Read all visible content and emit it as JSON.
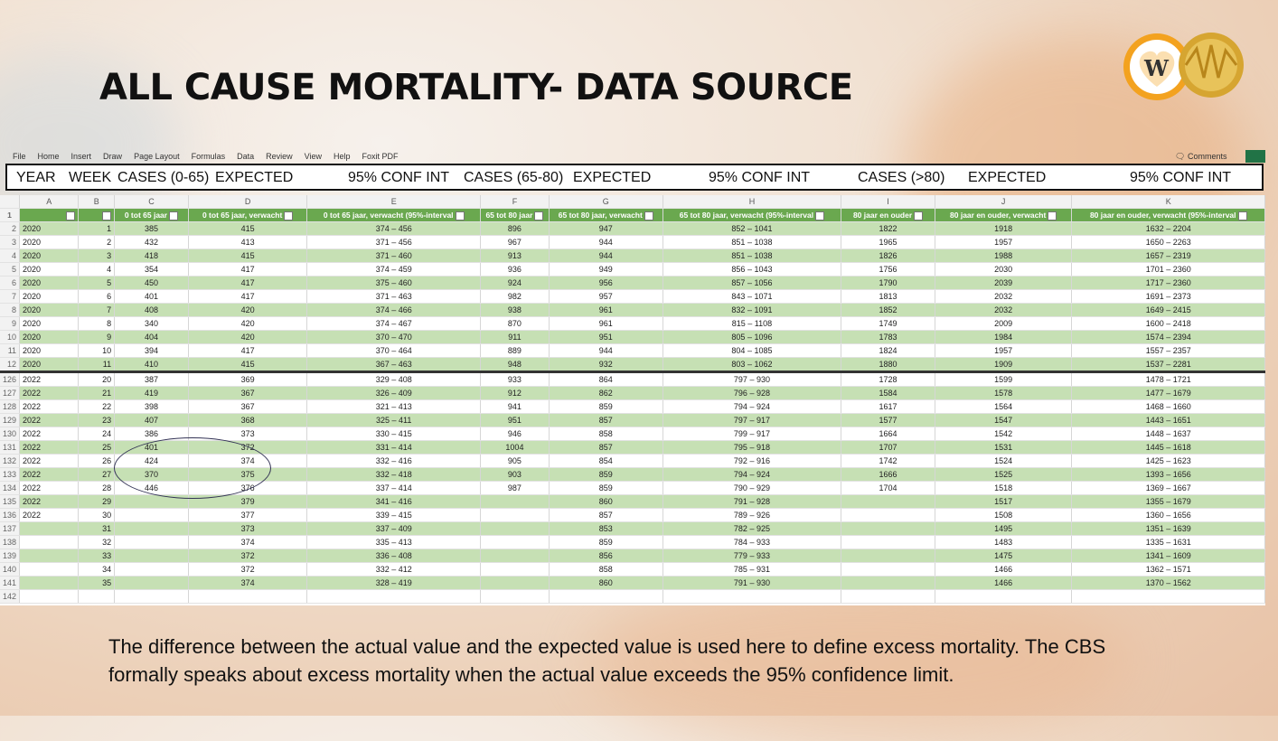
{
  "slide": {
    "title": "ALL CAUSE MORTALITY- DATA SOURCE",
    "caption_line1": "The difference between the actual value and the expected value is used here to define excess mortality. The CBS",
    "caption_line2": "formally speaks about excess mortality when the actual value exceeds the 95% confidence limit.",
    "logo_text": "W"
  },
  "ribbon": {
    "tabs": [
      "File",
      "Home",
      "Insert",
      "Draw",
      "Page Layout",
      "Formulas",
      "Data",
      "Review",
      "View",
      "Help",
      "Foxit PDF"
    ],
    "comments": "Comments"
  },
  "header_labels": [
    "YEAR",
    "WEEK",
    "CASES (0-65)",
    "EXPECTED",
    "95% CONF INT",
    "CASES (65-80)",
    "EXPECTED",
    "95% CONF INT",
    "CASES (>80)",
    "EXPECTED",
    "95% CONF INT"
  ],
  "column_letters": [
    "A",
    "B",
    "C",
    "D",
    "E",
    "F",
    "G",
    "H",
    "I",
    "J",
    "K"
  ],
  "column_headers": [
    "",
    "",
    "0 tot 65 jaar",
    "0 tot 65 jaar, verwacht",
    "0 tot 65 jaar, verwacht (95%-interval",
    "65 tot 80 jaar",
    "65 tot 80 jaar, verwacht",
    "65 tot 80 jaar, verwacht (95%-interval",
    "80 jaar en ouder",
    "80 jaar en ouder, verwacht",
    "80 jaar en ouder, verwacht (95%-interval"
  ],
  "rows": [
    [
      "2",
      "2020",
      "1",
      "385",
      "415",
      "374 – 456",
      "896",
      "947",
      "852 – 1041",
      "1822",
      "1918",
      "1632 – 2204"
    ],
    [
      "3",
      "2020",
      "2",
      "432",
      "413",
      "371 – 456",
      "967",
      "944",
      "851 – 1038",
      "1965",
      "1957",
      "1650 – 2263"
    ],
    [
      "4",
      "2020",
      "3",
      "418",
      "415",
      "371 – 460",
      "913",
      "944",
      "851 – 1038",
      "1826",
      "1988",
      "1657 – 2319"
    ],
    [
      "5",
      "2020",
      "4",
      "354",
      "417",
      "374 – 459",
      "936",
      "949",
      "856 – 1043",
      "1756",
      "2030",
      "1701 – 2360"
    ],
    [
      "6",
      "2020",
      "5",
      "450",
      "417",
      "375 – 460",
      "924",
      "956",
      "857 – 1056",
      "1790",
      "2039",
      "1717 – 2360"
    ],
    [
      "7",
      "2020",
      "6",
      "401",
      "417",
      "371 – 463",
      "982",
      "957",
      "843 – 1071",
      "1813",
      "2032",
      "1691 – 2373"
    ],
    [
      "8",
      "2020",
      "7",
      "408",
      "420",
      "374 – 466",
      "938",
      "961",
      "832 – 1091",
      "1852",
      "2032",
      "1649 – 2415"
    ],
    [
      "9",
      "2020",
      "8",
      "340",
      "420",
      "374 – 467",
      "870",
      "961",
      "815 – 1108",
      "1749",
      "2009",
      "1600 – 2418"
    ],
    [
      "10",
      "2020",
      "9",
      "404",
      "420",
      "370 – 470",
      "911",
      "951",
      "805 – 1096",
      "1783",
      "1984",
      "1574 – 2394"
    ],
    [
      "11",
      "2020",
      "10",
      "394",
      "417",
      "370 – 464",
      "889",
      "944",
      "804 – 1085",
      "1824",
      "1957",
      "1557 – 2357"
    ],
    [
      "12",
      "2020",
      "11",
      "410",
      "415",
      "367 – 463",
      "948",
      "932",
      "803 – 1062",
      "1880",
      "1909",
      "1537 – 2281"
    ],
    [
      "126",
      "2022",
      "20",
      "387",
      "369",
      "329 – 408",
      "933",
      "864",
      "797 – 930",
      "1728",
      "1599",
      "1478 – 1721"
    ],
    [
      "127",
      "2022",
      "21",
      "419",
      "367",
      "326 – 409",
      "912",
      "862",
      "796 – 928",
      "1584",
      "1578",
      "1477 – 1679"
    ],
    [
      "128",
      "2022",
      "22",
      "398",
      "367",
      "321 – 413",
      "941",
      "859",
      "794 – 924",
      "1617",
      "1564",
      "1468 – 1660"
    ],
    [
      "129",
      "2022",
      "23",
      "407",
      "368",
      "325 – 411",
      "951",
      "857",
      "797 – 917",
      "1577",
      "1547",
      "1443 – 1651"
    ],
    [
      "130",
      "2022",
      "24",
      "386",
      "373",
      "330 – 415",
      "946",
      "858",
      "799 – 917",
      "1664",
      "1542",
      "1448 – 1637"
    ],
    [
      "131",
      "2022",
      "25",
      "401",
      "372",
      "331 – 414",
      "1004",
      "857",
      "795 – 918",
      "1707",
      "1531",
      "1445 – 1618"
    ],
    [
      "132",
      "2022",
      "26",
      "424",
      "374",
      "332 – 416",
      "905",
      "854",
      "792 – 916",
      "1742",
      "1524",
      "1425 – 1623"
    ],
    [
      "133",
      "2022",
      "27",
      "370",
      "375",
      "332 – 418",
      "903",
      "859",
      "794 – 924",
      "1666",
      "1525",
      "1393 – 1656"
    ],
    [
      "134",
      "2022",
      "28",
      "446",
      "376",
      "337 – 414",
      "987",
      "859",
      "790 – 929",
      "1704",
      "1518",
      "1369 – 1667"
    ],
    [
      "135",
      "2022",
      "29",
      "",
      "379",
      "341 – 416",
      "",
      "860",
      "791 – 928",
      "",
      "1517",
      "1355 – 1679"
    ],
    [
      "136",
      "2022",
      "30",
      "",
      "377",
      "339 – 415",
      "",
      "857",
      "789 – 926",
      "",
      "1508",
      "1360 – 1656"
    ],
    [
      "137",
      "",
      "31",
      "",
      "373",
      "337 – 409",
      "",
      "853",
      "782 – 925",
      "",
      "1495",
      "1351 – 1639"
    ],
    [
      "138",
      "",
      "32",
      "",
      "374",
      "335 – 413",
      "",
      "859",
      "784 – 933",
      "",
      "1483",
      "1335 – 1631"
    ],
    [
      "139",
      "",
      "33",
      "",
      "372",
      "336 – 408",
      "",
      "856",
      "779 – 933",
      "",
      "1475",
      "1341 – 1609"
    ],
    [
      "140",
      "",
      "34",
      "",
      "372",
      "332 – 412",
      "",
      "858",
      "785 – 931",
      "",
      "1466",
      "1362 – 1571"
    ],
    [
      "141",
      "",
      "35",
      "",
      "374",
      "328 – 419",
      "",
      "860",
      "791 – 930",
      "",
      "1466",
      "1370 – 1562"
    ],
    [
      "142",
      "",
      "",
      "",
      "",
      "",
      "",
      "",
      "",
      "",
      "",
      ""
    ]
  ]
}
